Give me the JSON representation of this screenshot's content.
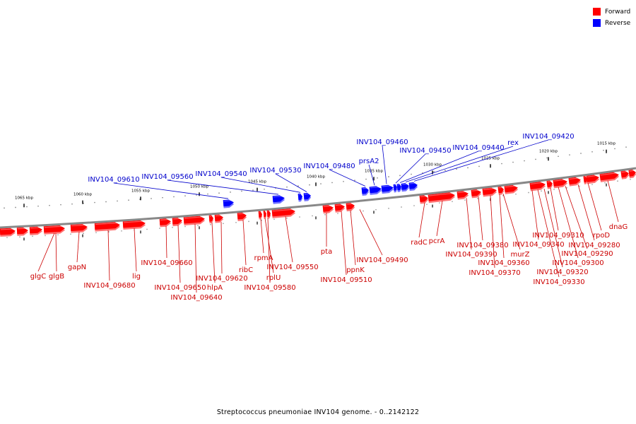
{
  "legend": {
    "forward": {
      "label": "Forward",
      "color": "#ff0000"
    },
    "reverse": {
      "label": "Reverse",
      "color": "#0000ff"
    }
  },
  "caption": "Streptococcus pneumoniae INV104 genome. - 0..2142122",
  "colors": {
    "forward_label": "#cc0000",
    "reverse_label": "#0000cc",
    "backbone": "#888888"
  },
  "scale_labels": [
    "1065 kbp",
    "1060 kbp",
    "1055 kbp",
    "1050 kbp",
    "1045 kbp",
    "1040 kbp",
    "1035 kbp",
    "1030 kbp",
    "1025 kbp",
    "1020 kbp",
    "1015 kbp"
  ],
  "forward_genes": [
    "glgC",
    "glgB",
    "gapN",
    "INV104_09680",
    "lig",
    "INV104_09660",
    "INV104_09650",
    "INV104_09640",
    "hlpA",
    "INV104_09620",
    "ribC",
    "rpmA",
    "rplU",
    "INV104_09580",
    "INV104_09550",
    "pta",
    "INV104_09510",
    "ppnK",
    "INV104_09490",
    "radC",
    "pcrA",
    "INV104_09390",
    "INV104_09380",
    "INV104_09370",
    "INV104_09360",
    "murZ",
    "INV104_09340",
    "INV104_09330",
    "INV104_09320",
    "INV104_09310",
    "INV104_09300",
    "INV104_09290",
    "INV104_09280",
    "rpoD",
    "dnaG"
  ],
  "reverse_genes": [
    "INV104_09610",
    "INV104_09560",
    "INV104_09540",
    "INV104_09530",
    "INV104_09480",
    "prsA2",
    "INV104_09460",
    "INV104_09450",
    "INV104_09440",
    "rex",
    "INV104_09420"
  ]
}
